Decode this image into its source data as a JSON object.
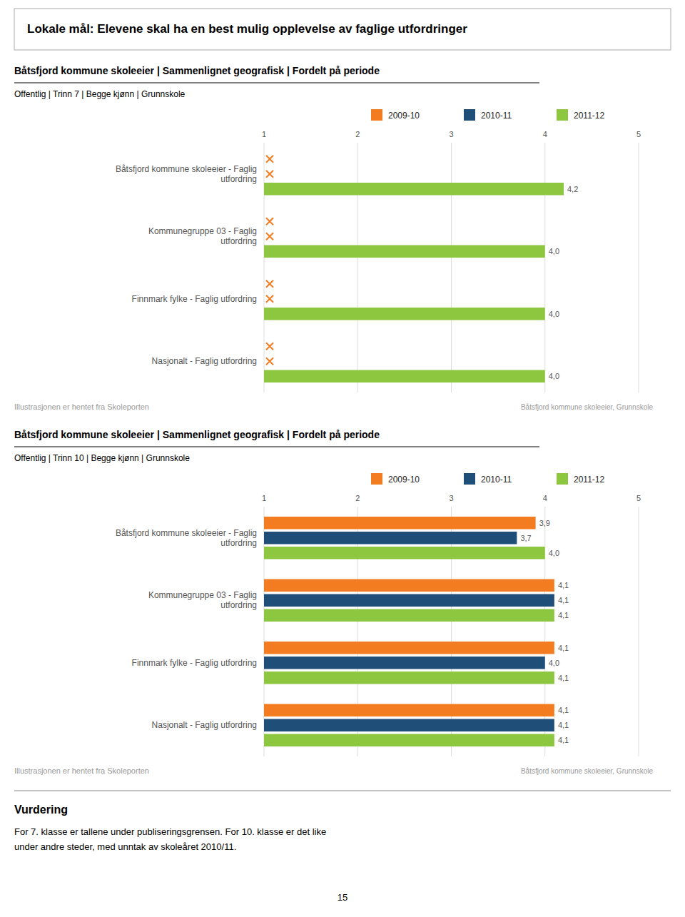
{
  "title": "Lokale mål: Elevene skal ha en best mulig opplevelse av faglige utfordringer",
  "chart_data": [
    {
      "type": "bar",
      "orientation": "horizontal",
      "title": "Båtsfjord kommune skoleeier | Sammenlignet geografisk | Fordelt på periode",
      "subtitle": "Offentlig | Trinn 7 | Begge kjønn | Grunnskole",
      "categories": [
        "Båtsfjord kommune skoleeier - Faglig\nutfordring",
        "Kommunegruppe 03 - Faglig\nutfordring",
        "Finnmark fylke - Faglig utfordring",
        "Nasjonalt - Faglig utfordring"
      ],
      "series": [
        {
          "name": "2009-10",
          "color": "#f47c20",
          "values": [
            null,
            null,
            null,
            null
          ],
          "value_labels": [
            null,
            null,
            null,
            null
          ]
        },
        {
          "name": "2010-11",
          "color": "#1f4e79",
          "values": [
            null,
            null,
            null,
            null
          ],
          "value_labels": [
            null,
            null,
            null,
            null
          ]
        },
        {
          "name": "2011-12",
          "color": "#8dc63f",
          "values": [
            4.2,
            4.0,
            4.0,
            4.0
          ],
          "value_labels": [
            "4,2",
            "4,0",
            "4,0",
            "4,0"
          ]
        }
      ],
      "xlim": [
        1,
        5
      ],
      "xticks": [
        1,
        2,
        3,
        4,
        5
      ],
      "grid": true,
      "legend": "top",
      "data_labels": true,
      "annotations": [
        "Båtsfjord kommune skoleeier, Grunnskole",
        "Illustrasjonen er hentet fra Skoleporten"
      ]
    },
    {
      "type": "bar",
      "orientation": "horizontal",
      "title": "Båtsfjord kommune skoleeier | Sammenlignet geografisk | Fordelt på periode",
      "subtitle": "Offentlig | Trinn 10 | Begge kjønn | Grunnskole",
      "categories": [
        "Båtsfjord kommune skoleeier - Faglig\nutfordring",
        "Kommunegruppe 03 - Faglig\nutfordring",
        "Finnmark fylke - Faglig utfordring",
        "Nasjonalt - Faglig utfordring"
      ],
      "series": [
        {
          "name": "2009-10",
          "color": "#f47c20",
          "values": [
            3.9,
            4.1,
            4.1,
            4.1
          ],
          "value_labels": [
            "3,9",
            "4,1",
            "4,1",
            "4,1"
          ]
        },
        {
          "name": "2010-11",
          "color": "#1f4e79",
          "values": [
            3.7,
            4.1,
            4.0,
            4.1
          ],
          "value_labels": [
            "3,7",
            "4,1",
            "4,0",
            "4,1"
          ]
        },
        {
          "name": "2011-12",
          "color": "#8dc63f",
          "values": [
            4.0,
            4.1,
            4.1,
            4.1
          ],
          "value_labels": [
            "4,0",
            "4,1",
            "4,1",
            "4,1"
          ]
        }
      ],
      "xlim": [
        1,
        5
      ],
      "xticks": [
        1,
        2,
        3,
        4,
        5
      ],
      "grid": true,
      "legend": "top",
      "data_labels": true,
      "annotations": [
        "Båtsfjord kommune skoleeier, Grunnskole",
        "Illustrasjonen er hentet fra Skoleporten"
      ]
    }
  ],
  "section_title": "Vurdering",
  "text": "For 7. klasse er tallene under publiseringsgrensen. For 10. klasse er det like\nunder andre steder, med unntak av skoleåret 2010/11.",
  "page_number": "15"
}
